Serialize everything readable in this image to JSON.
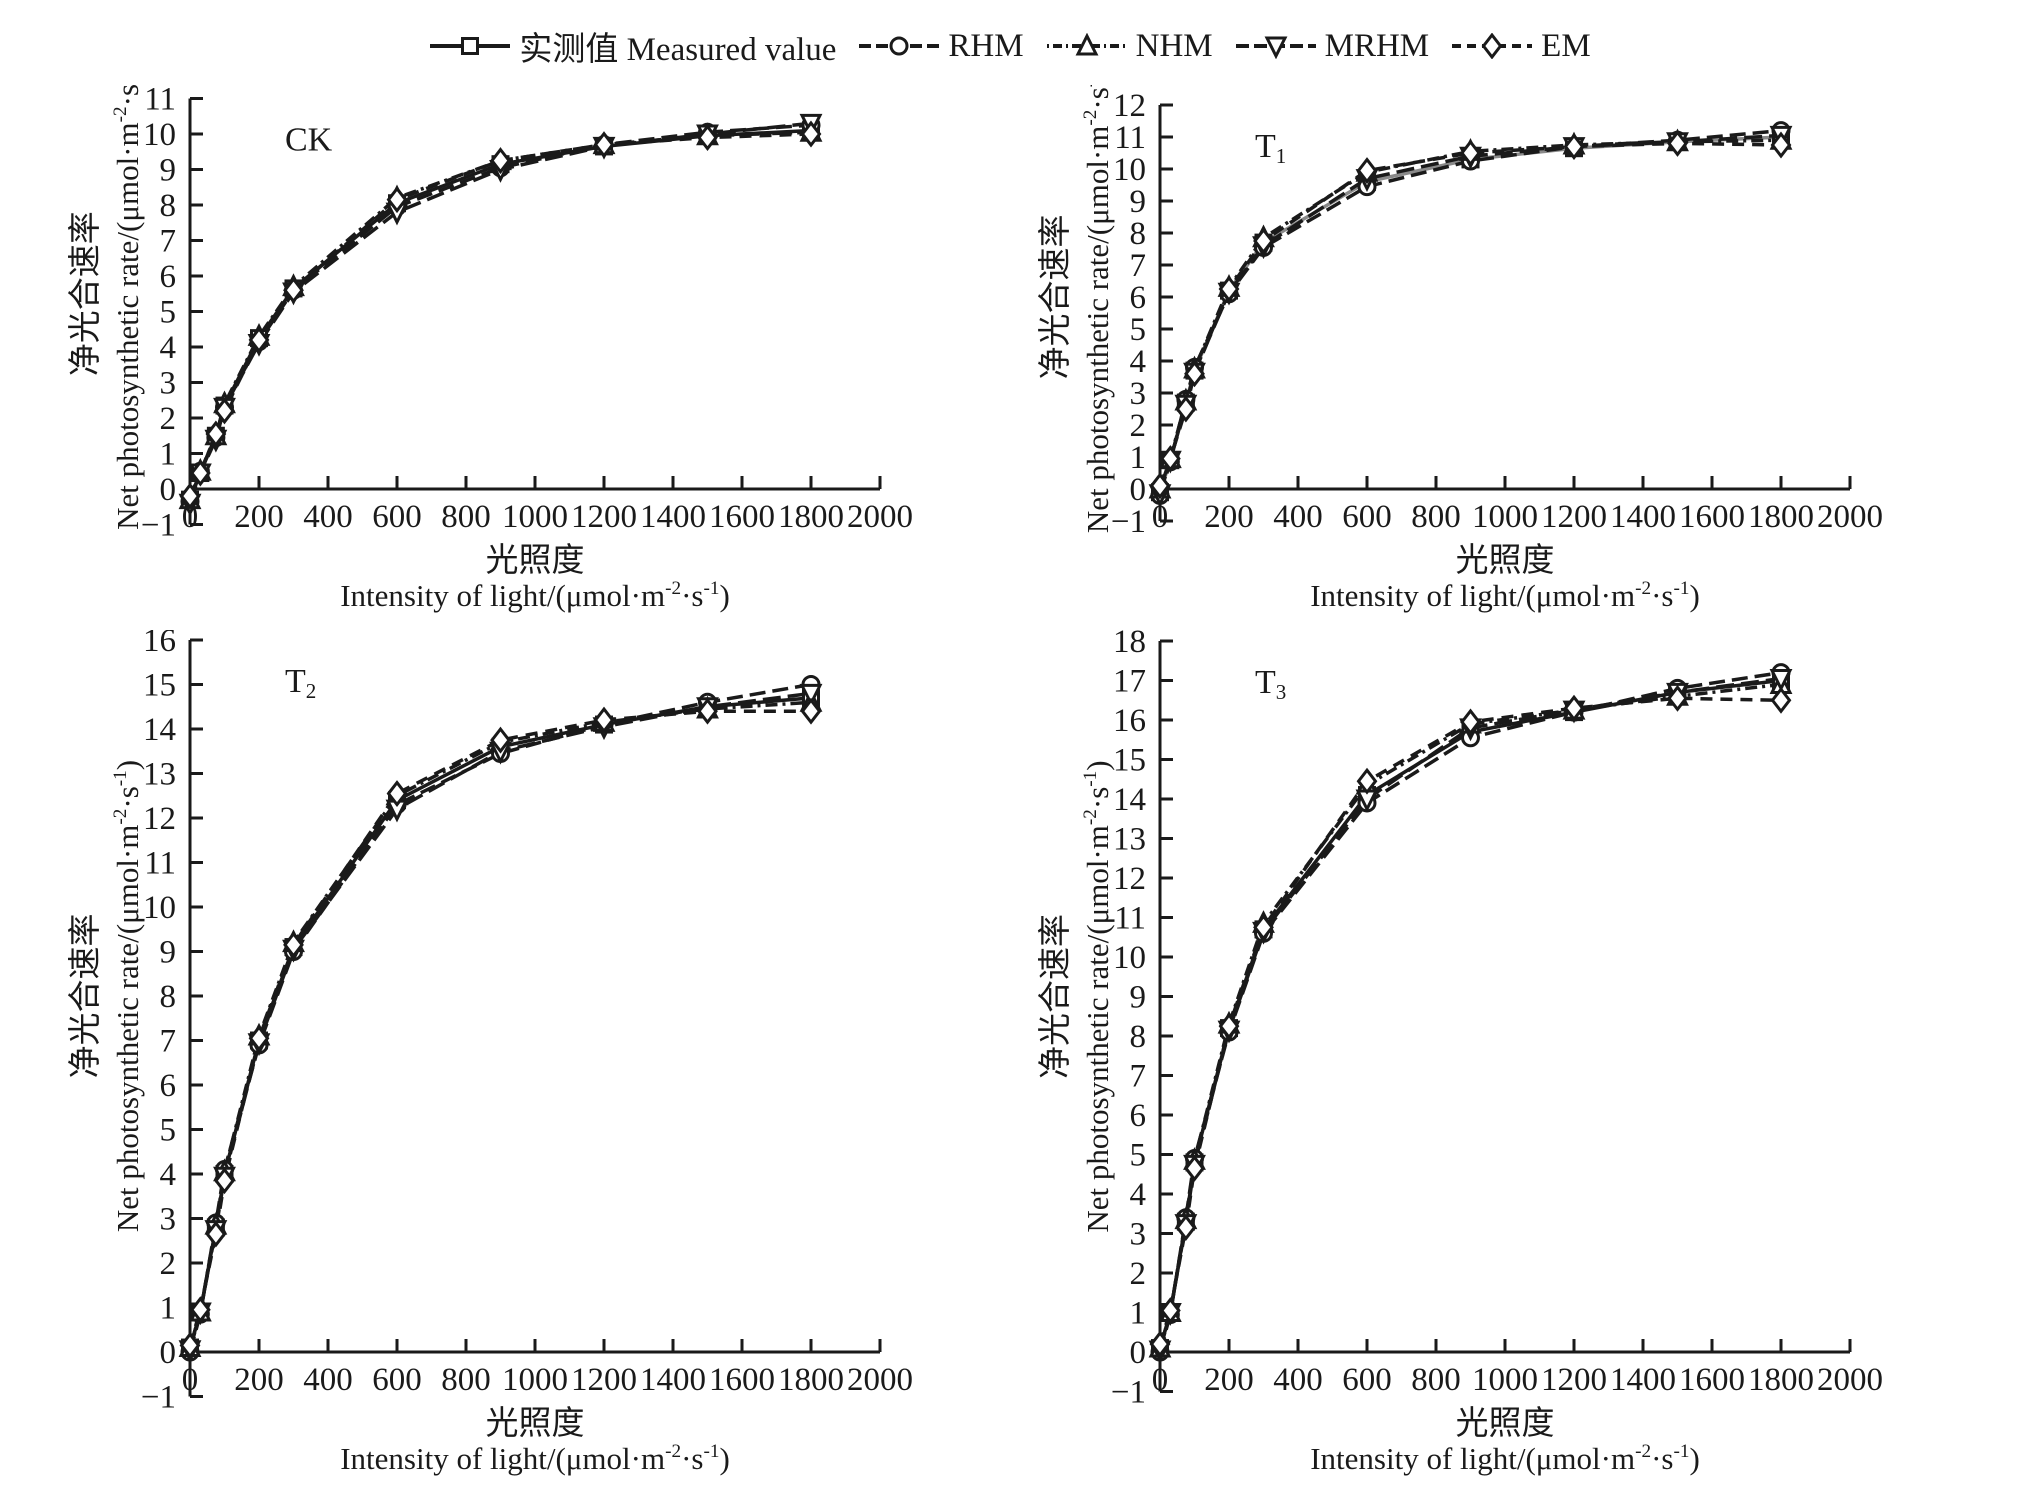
{
  "figure": {
    "background": "#ffffff",
    "ink": "#1a1a1a",
    "measured_gray": "#8a8a8a"
  },
  "legend": {
    "items": [
      {
        "label": "实测值 Measured value",
        "series": "measured"
      },
      {
        "label": "RHM",
        "series": "RHM"
      },
      {
        "label": "NHM",
        "series": "NHM"
      },
      {
        "label": "MRHM",
        "series": "MRHM"
      },
      {
        "label": "EM",
        "series": "EM"
      }
    ]
  },
  "axis_captions": {
    "x_zh": "光照度",
    "x_en": "Intensity of light/(μmol·m^-2·s^-1)",
    "y_zh": "净光合速率",
    "y_en": "Net photosynthetic rate/(μmol·m^-2·s^-1)"
  },
  "series_styles": [
    {
      "name": "measured",
      "marker": "square",
      "dash": "",
      "legend_dash": ""
    },
    {
      "name": "RHM",
      "marker": "circle",
      "dash": "16 7",
      "legend_dash": "12 5"
    },
    {
      "name": "NHM",
      "marker": "triangle-up",
      "dash": "3 5 12 5",
      "legend_dash": "2 4 9 4"
    },
    {
      "name": "MRHM",
      "marker": "triangle-down",
      "dash": "18 7",
      "legend_dash": "13 5"
    },
    {
      "name": "EM",
      "marker": "diamond",
      "dash": "12 8",
      "legend_dash": "9 6"
    }
  ],
  "chart_data": [
    {
      "type": "line",
      "panel_label": "CK",
      "xlim": [
        0,
        2000
      ],
      "xtick_step": 200,
      "ylim": [
        -1,
        11
      ],
      "ytick_step": 1,
      "x": [
        0,
        30,
        75,
        100,
        200,
        300,
        600,
        900,
        1200,
        1500,
        1800
      ],
      "measured_line_color": "#1a1a1a",
      "series": [
        {
          "name": "measured",
          "values": [
            -0.3,
            0.45,
            1.5,
            2.35,
            4.25,
            5.65,
            8.05,
            9.15,
            9.65,
            9.95,
            10.1
          ]
        },
        {
          "name": "RHM",
          "values": [
            -0.35,
            0.5,
            1.45,
            2.3,
            4.15,
            5.6,
            7.95,
            9.05,
            9.7,
            10.05,
            10.25
          ]
        },
        {
          "name": "NHM",
          "values": [
            -0.3,
            0.5,
            1.5,
            2.4,
            4.3,
            5.7,
            8.2,
            9.25,
            9.7,
            9.95,
            10.05
          ]
        },
        {
          "name": "MRHM",
          "values": [
            -0.4,
            0.45,
            1.4,
            2.3,
            4.1,
            5.55,
            7.8,
            9.0,
            9.65,
            10.0,
            10.3
          ]
        },
        {
          "name": "EM",
          "values": [
            -0.2,
            0.45,
            1.55,
            2.2,
            4.2,
            5.6,
            8.15,
            9.25,
            9.7,
            9.9,
            10.0
          ]
        }
      ]
    },
    {
      "type": "line",
      "panel_label": "T_1",
      "xlim": [
        0,
        2000
      ],
      "xtick_step": 200,
      "ylim": [
        -1,
        12
      ],
      "ytick_step": 1,
      "x": [
        0,
        30,
        75,
        100,
        200,
        300,
        600,
        900,
        1200,
        1500,
        1800
      ],
      "measured_line_color": "#8a8a8a",
      "series": [
        {
          "name": "measured",
          "values": [
            -0.1,
            0.9,
            2.7,
            3.7,
            6.2,
            7.7,
            9.6,
            10.3,
            10.65,
            10.85,
            11.0
          ]
        },
        {
          "name": "RHM",
          "values": [
            -0.2,
            0.85,
            2.8,
            3.8,
            6.1,
            7.55,
            9.45,
            10.25,
            10.7,
            10.9,
            11.2
          ]
        },
        {
          "name": "NHM",
          "values": [
            0.0,
            0.95,
            2.75,
            3.75,
            6.3,
            7.85,
            9.9,
            10.55,
            10.75,
            10.85,
            10.9
          ]
        },
        {
          "name": "MRHM",
          "values": [
            -0.15,
            0.9,
            2.65,
            3.65,
            6.15,
            7.6,
            9.7,
            10.4,
            10.7,
            10.85,
            11.05
          ]
        },
        {
          "name": "EM",
          "values": [
            0.1,
            0.95,
            2.5,
            3.6,
            6.25,
            7.75,
            9.95,
            10.5,
            10.7,
            10.8,
            10.75
          ]
        }
      ]
    },
    {
      "type": "line",
      "panel_label": "T_2",
      "xlim": [
        0,
        2000
      ],
      "xtick_step": 200,
      "ylim": [
        -1,
        16
      ],
      "ytick_step": 1,
      "x": [
        0,
        30,
        75,
        100,
        200,
        300,
        600,
        900,
        1200,
        1500,
        1800
      ],
      "measured_line_color": "#1a1a1a",
      "series": [
        {
          "name": "measured",
          "values": [
            0.1,
            0.9,
            2.8,
            4.0,
            7.0,
            9.1,
            12.4,
            13.6,
            14.1,
            14.5,
            14.7
          ]
        },
        {
          "name": "RHM",
          "values": [
            0.0,
            0.85,
            2.9,
            4.1,
            6.9,
            9.0,
            12.3,
            13.45,
            14.1,
            14.6,
            15.0
          ]
        },
        {
          "name": "NHM",
          "values": [
            0.1,
            0.9,
            2.85,
            4.05,
            7.1,
            9.2,
            12.5,
            13.7,
            14.15,
            14.45,
            14.6
          ]
        },
        {
          "name": "MRHM",
          "values": [
            0.05,
            0.9,
            2.75,
            3.95,
            6.95,
            9.05,
            12.2,
            13.5,
            14.05,
            14.5,
            14.8
          ]
        },
        {
          "name": "EM",
          "values": [
            0.15,
            0.95,
            2.65,
            3.85,
            7.05,
            9.15,
            12.55,
            13.75,
            14.2,
            14.4,
            14.4
          ]
        }
      ]
    },
    {
      "type": "line",
      "panel_label": "T_3",
      "xlim": [
        0,
        2000
      ],
      "xtick_step": 200,
      "ylim": [
        -1,
        18
      ],
      "ytick_step": 1,
      "x": [
        0,
        30,
        75,
        100,
        200,
        300,
        600,
        900,
        1200,
        1500,
        1800
      ],
      "measured_line_color": "#1a1a1a",
      "series": [
        {
          "name": "measured",
          "values": [
            0.1,
            1.0,
            3.3,
            4.8,
            8.2,
            10.7,
            14.1,
            15.7,
            16.2,
            16.7,
            17.0
          ]
        },
        {
          "name": "RHM",
          "values": [
            0.0,
            0.95,
            3.4,
            4.9,
            8.1,
            10.6,
            13.9,
            15.55,
            16.2,
            16.8,
            17.2
          ]
        },
        {
          "name": "NHM",
          "values": [
            0.1,
            1.0,
            3.35,
            4.85,
            8.3,
            10.85,
            14.35,
            15.9,
            16.25,
            16.6,
            16.9
          ]
        },
        {
          "name": "MRHM",
          "values": [
            0.05,
            1.0,
            3.25,
            4.75,
            8.15,
            10.65,
            14.0,
            15.8,
            16.25,
            16.7,
            17.05
          ]
        },
        {
          "name": "EM",
          "values": [
            0.2,
            1.05,
            3.15,
            4.65,
            8.25,
            10.75,
            14.45,
            15.95,
            16.3,
            16.55,
            16.5
          ]
        }
      ]
    }
  ]
}
